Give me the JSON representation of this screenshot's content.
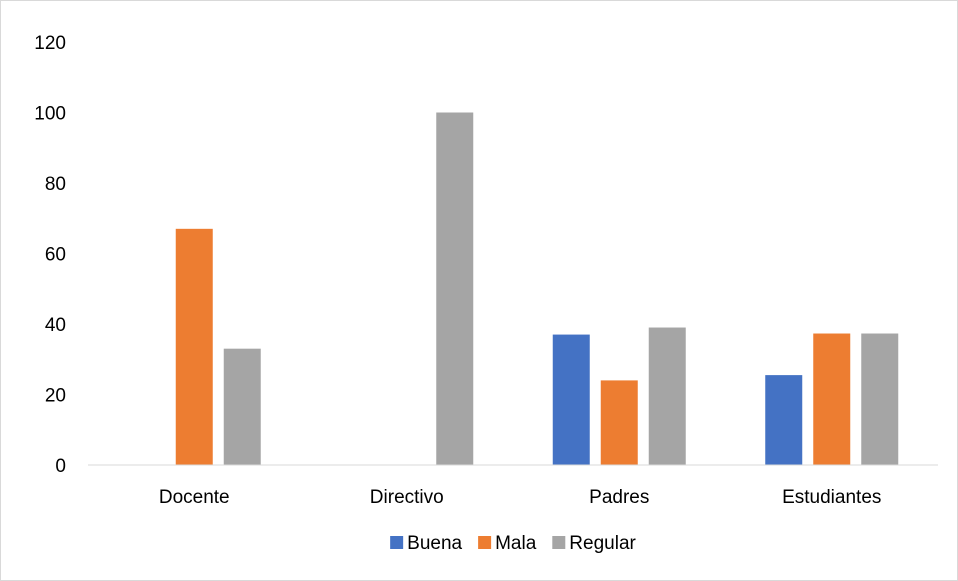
{
  "chart_data": {
    "type": "bar",
    "title": "",
    "xlabel": "",
    "ylabel": "",
    "categories": [
      "Docente",
      "Directivo",
      "Padres",
      "Estudiantes"
    ],
    "series": [
      {
        "name": "Buena",
        "color": "#4472C4",
        "values": [
          0,
          0,
          37,
          25.5
        ]
      },
      {
        "name": "Mala",
        "color": "#ED7D31",
        "values": [
          67,
          0,
          24,
          37.3
        ]
      },
      {
        "name": "Regular",
        "color": "#A5A5A5",
        "values": [
          33,
          100,
          39,
          37.3
        ]
      }
    ],
    "ylim": [
      0,
      120
    ],
    "yticks": [
      0,
      20,
      40,
      60,
      80,
      100,
      120
    ],
    "ytick_labels": [
      "0",
      "20",
      "40",
      "60",
      "80",
      "100",
      "120"
    ],
    "grid": false,
    "legend_position": "bottom"
  }
}
